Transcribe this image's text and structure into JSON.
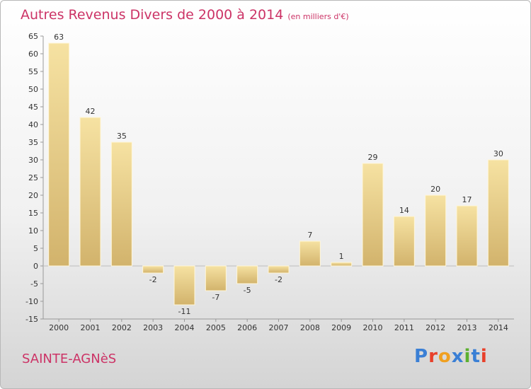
{
  "header": {
    "title": "Autres Revenus Divers de 2000 à 2014",
    "unit": "(en milliers d'€)"
  },
  "footer": {
    "commune": "SAINTE-AGNèS",
    "logo_text": "Proxiti"
  },
  "colors": {
    "title": "#cc3366",
    "bar_light": "#f6e2a2",
    "bar_dark": "#d2b36c",
    "logo_letters": [
      "#3a7fd5",
      "#e8402a",
      "#f0a020",
      "#3a7fd5",
      "#5cb030",
      "#3a7fd5",
      "#e8402a"
    ]
  },
  "chart_data": {
    "type": "bar",
    "categories": [
      "2000",
      "2001",
      "2002",
      "2003",
      "2004",
      "2005",
      "2006",
      "2007",
      "2008",
      "2009",
      "2010",
      "2011",
      "2012",
      "2013",
      "2014"
    ],
    "values": [
      63,
      42,
      35,
      -2,
      -11,
      -7,
      -5,
      -2,
      7,
      1,
      29,
      14,
      20,
      17,
      30
    ],
    "title": "Autres Revenus Divers de 2000 à 2014",
    "ylim": [
      -15,
      65
    ],
    "yticks": [
      -15,
      -10,
      -5,
      0,
      5,
      10,
      15,
      20,
      25,
      30,
      35,
      40,
      45,
      50,
      55,
      60,
      65
    ],
    "grid": false,
    "legend": "none"
  }
}
